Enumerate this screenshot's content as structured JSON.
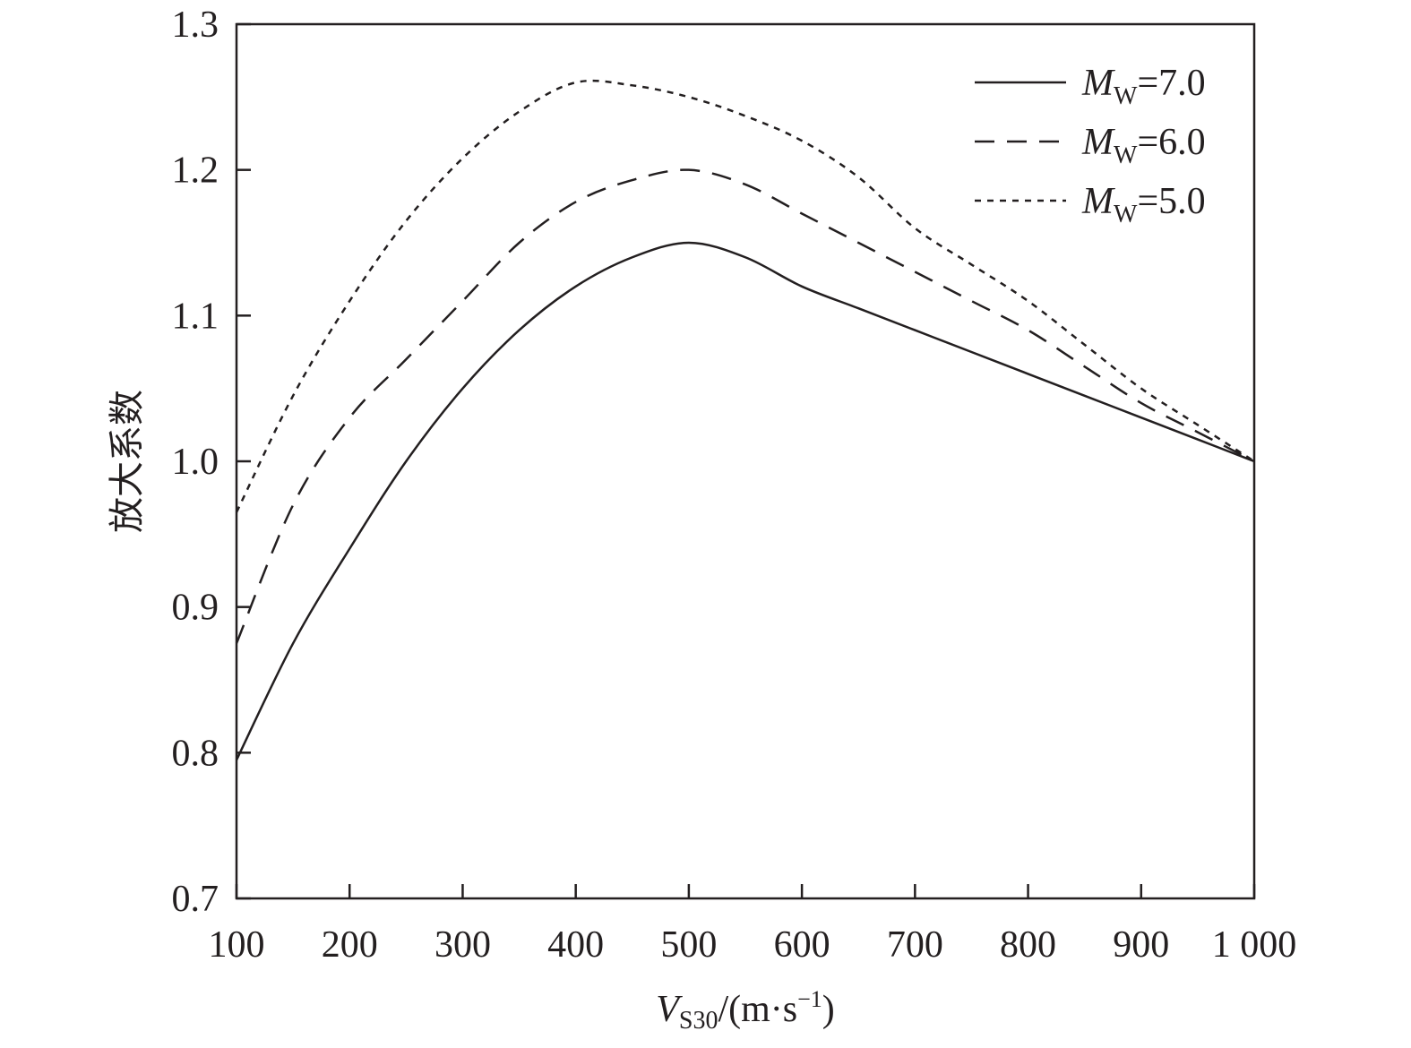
{
  "chart_data": {
    "type": "line",
    "title": "",
    "xlabel": {
      "main": "V",
      "sub": "S30",
      "rest": "/(m·s",
      "sup": "−1",
      "end": ")"
    },
    "ylabel": "放大系数",
    "xlim": [
      100,
      1000
    ],
    "ylim": [
      0.7,
      1.3
    ],
    "xticks": [
      100,
      200,
      300,
      400,
      500,
      600,
      700,
      800,
      900,
      1000
    ],
    "xtick_labels": [
      "100",
      "200",
      "300",
      "400",
      "500",
      "600",
      "700",
      "800",
      "900",
      "1 000"
    ],
    "yticks": [
      0.7,
      0.8,
      0.9,
      1.0,
      1.1,
      1.2,
      1.3
    ],
    "ytick_labels": [
      "0.7",
      "0.8",
      "0.9",
      "1.0",
      "1.1",
      "1.2",
      "1.3"
    ],
    "grid": false,
    "legend_position": "top-right",
    "x": [
      100,
      150,
      200,
      250,
      300,
      350,
      400,
      450,
      500,
      550,
      600,
      650,
      700,
      750,
      800,
      850,
      900,
      950,
      1000
    ],
    "series": [
      {
        "name": "M_W=7.0",
        "label": {
          "main": "M",
          "sub": "W",
          "rest": "=7.0"
        },
        "style": "solid",
        "values": [
          0.795,
          0.875,
          0.94,
          1.0,
          1.05,
          1.09,
          1.12,
          1.14,
          1.15,
          1.14,
          1.12,
          1.105,
          1.09,
          1.075,
          1.06,
          1.045,
          1.03,
          1.015,
          1.0
        ]
      },
      {
        "name": "M_W=6.0",
        "label": {
          "main": "M",
          "sub": "W",
          "rest": "=6.0"
        },
        "style": "dashed",
        "values": [
          0.875,
          0.97,
          1.03,
          1.07,
          1.11,
          1.15,
          1.178,
          1.193,
          1.2,
          1.19,
          1.17,
          1.15,
          1.13,
          1.11,
          1.09,
          1.065,
          1.04,
          1.02,
          1.0
        ]
      },
      {
        "name": "M_W=5.0",
        "label": {
          "main": "M",
          "sub": "W",
          "rest": "=5.0"
        },
        "style": "dotted",
        "values": [
          0.965,
          1.045,
          1.11,
          1.165,
          1.208,
          1.24,
          1.26,
          1.258,
          1.25,
          1.237,
          1.22,
          1.195,
          1.16,
          1.135,
          1.11,
          1.08,
          1.05,
          1.025,
          1.0
        ]
      }
    ]
  }
}
